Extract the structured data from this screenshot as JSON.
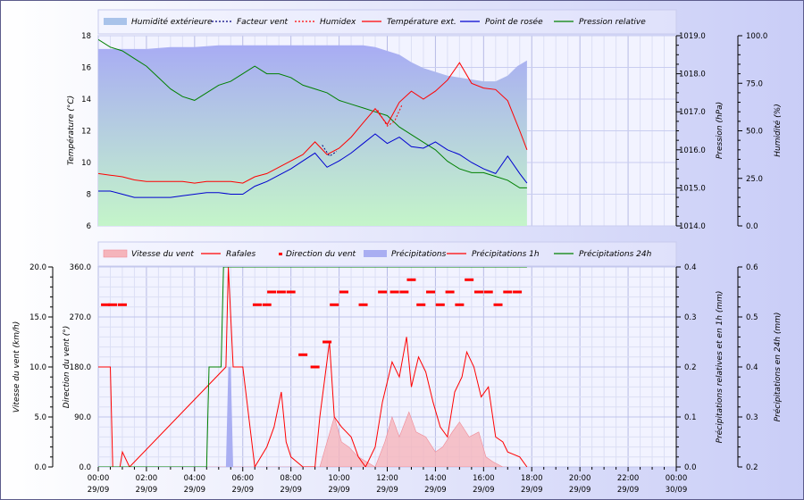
{
  "chart_data": [
    {
      "type": "line",
      "legend": [
        "Humidité extérieure",
        "Facteur vent",
        "Humidex",
        "Température ext.",
        "Point de rosée",
        "Pression relative"
      ],
      "axes": {
        "y_left": {
          "label": "Température (°C)",
          "ticks": [
            "6",
            "8",
            "10",
            "12",
            "14",
            "16",
            "18"
          ],
          "range": [
            6,
            18
          ]
        },
        "y_right1": {
          "label": "Pression (hPa)",
          "ticks": [
            "1014.0",
            "1015.0",
            "1016.0",
            "1017.0",
            "1018.0",
            "1019.0"
          ],
          "range": [
            1014,
            1019
          ]
        },
        "y_right2": {
          "label": "Humidité (%)",
          "ticks": [
            "0.0",
            "25.0",
            "50.0",
            "75.0",
            "100.0"
          ],
          "range": [
            0,
            100
          ]
        }
      },
      "x_range_hours": [
        0,
        24
      ],
      "series": [
        {
          "name": "Humidité extérieure",
          "unit": "%",
          "color": "#a9aef2",
          "x": [
            0,
            0.5,
            1,
            1.5,
            2,
            3,
            4,
            5,
            6,
            7,
            8,
            9,
            10,
            11,
            11.5,
            12,
            12.5,
            13,
            13.5,
            14,
            14.5,
            15,
            15.5,
            16,
            16.5,
            17,
            17.4,
            17.8
          ],
          "y": [
            93,
            93,
            93,
            93,
            93,
            94,
            94,
            95,
            95,
            95,
            95,
            95,
            95,
            95,
            94,
            92,
            90,
            86,
            83,
            81,
            79,
            78,
            77,
            76,
            76,
            79,
            84,
            87
          ]
        },
        {
          "name": "Pression relative",
          "unit": "hPa",
          "color": "#008000",
          "x": [
            0,
            0.5,
            1,
            1.5,
            2,
            2.5,
            3,
            3.5,
            4,
            4.5,
            5,
            5.5,
            6,
            6.5,
            7,
            7.5,
            8,
            8.5,
            9,
            9.5,
            10,
            10.5,
            11,
            11.5,
            12,
            12.5,
            13,
            13.5,
            14,
            14.5,
            15,
            15.5,
            16,
            16.5,
            17,
            17.5,
            17.8
          ],
          "y": [
            1018.9,
            1018.7,
            1018.6,
            1018.4,
            1018.2,
            1017.9,
            1017.6,
            1017.4,
            1017.3,
            1017.5,
            1017.7,
            1017.8,
            1018.0,
            1018.2,
            1018.0,
            1018.0,
            1017.9,
            1017.7,
            1017.6,
            1017.5,
            1017.3,
            1017.2,
            1017.1,
            1017.0,
            1016.9,
            1016.6,
            1016.4,
            1016.2,
            1016.0,
            1015.7,
            1015.5,
            1015.4,
            1015.4,
            1015.3,
            1015.2,
            1015.0,
            1015.0
          ]
        },
        {
          "name": "Température ext.",
          "unit": "°C",
          "color": "#ff0000",
          "x": [
            0,
            0.5,
            1,
            1.5,
            2,
            2.5,
            3,
            3.5,
            4,
            4.5,
            5,
            5.5,
            6,
            6.5,
            7,
            7.5,
            8,
            8.5,
            9,
            9.5,
            10,
            10.5,
            11,
            11.5,
            12,
            12.5,
            13,
            13.5,
            14,
            14.5,
            15,
            15.5,
            16,
            16.5,
            17,
            17.5,
            17.8
          ],
          "y": [
            9.3,
            9.2,
            9.1,
            8.9,
            8.8,
            8.8,
            8.8,
            8.8,
            8.7,
            8.8,
            8.8,
            8.8,
            8.7,
            9.1,
            9.3,
            9.7,
            10.1,
            10.5,
            11.3,
            10.5,
            10.9,
            11.6,
            12.5,
            13.4,
            12.4,
            13.8,
            14.5,
            14.0,
            14.5,
            15.2,
            16.3,
            15.0,
            14.7,
            14.6,
            13.9,
            12.0,
            10.8
          ]
        },
        {
          "name": "Point de rosée",
          "unit": "°C",
          "color": "#0000d0",
          "x": [
            0,
            0.5,
            1,
            1.5,
            2,
            2.5,
            3,
            3.5,
            4,
            4.5,
            5,
            5.5,
            6,
            6.5,
            7,
            7.5,
            8,
            8.5,
            9,
            9.5,
            10,
            10.5,
            11,
            11.5,
            12,
            12.5,
            13,
            13.5,
            14,
            14.5,
            15,
            15.5,
            16,
            16.5,
            17,
            17.5,
            17.8
          ],
          "y": [
            8.2,
            8.2,
            8.0,
            7.8,
            7.8,
            7.8,
            7.8,
            7.9,
            8.0,
            8.1,
            8.1,
            8.0,
            8.0,
            8.5,
            8.8,
            9.2,
            9.6,
            10.1,
            10.6,
            9.7,
            10.1,
            10.6,
            11.2,
            11.8,
            11.2,
            11.6,
            11.0,
            10.9,
            11.3,
            10.8,
            10.5,
            10.0,
            9.6,
            9.3,
            10.4,
            9.3,
            8.7
          ]
        },
        {
          "name": "Humidex",
          "unit": "°C",
          "color": "#ff0000",
          "x": [
            11.6,
            12.0,
            12.3,
            12.6
          ],
          "y": [
            13.3,
            12.3,
            12.6,
            13.6
          ]
        },
        {
          "name": "Facteur vent",
          "unit": "°C",
          "color": "#000080",
          "x": [
            9.3,
            9.6,
            9.9
          ],
          "y": [
            11.1,
            10.4,
            10.7
          ]
        }
      ],
      "x_ticks": [
        {
          "time": "00:00",
          "date": "29/09"
        },
        {
          "time": "02:00",
          "date": "29/09"
        },
        {
          "time": "04:00",
          "date": "29/09"
        },
        {
          "time": "06:00",
          "date": "29/09"
        },
        {
          "time": "08:00",
          "date": "29/09"
        },
        {
          "time": "10:00",
          "date": "29/09"
        },
        {
          "time": "12:00",
          "date": "29/09"
        },
        {
          "time": "14:00",
          "date": "29/09"
        },
        {
          "time": "16:00",
          "date": "29/09"
        },
        {
          "time": "18:00",
          "date": "29/09"
        },
        {
          "time": "20:00",
          "date": "29/09"
        },
        {
          "time": "22:00",
          "date": "29/09"
        },
        {
          "time": "00:00",
          "date": "30/09"
        }
      ]
    },
    {
      "type": "line",
      "legend": [
        "Vitesse du vent",
        "Rafales",
        "Direction du vent",
        "Précipitations",
        "Précipitations 1h",
        "Précipitations 24h"
      ],
      "axes": {
        "y_left": {
          "label": "Vitesse du vent (km/h)",
          "ticks": [
            "0.0",
            "5.0",
            "10.0",
            "15.0",
            "20.0"
          ],
          "range": [
            0,
            20
          ]
        },
        "y_left2": {
          "label": "Direction du vent (°)",
          "ticks": [
            "0.0",
            "90.0",
            "180.0",
            "270.0",
            "360.0"
          ],
          "range": [
            0,
            360
          ]
        },
        "y_right1": {
          "label": "Précipitations relatives et en 1h (mm)",
          "ticks": [
            "0.0",
            "0.1",
            "0.2",
            "0.3",
            "0.4"
          ],
          "range": [
            0,
            0.4
          ]
        },
        "y_right2": {
          "label": "Précipitations en 24h (mm)",
          "ticks": [
            "0.2",
            "0.3",
            "0.4",
            "0.5",
            "0.6"
          ],
          "range": [
            0.2,
            0.6
          ]
        }
      },
      "x_range_hours": [
        0,
        24
      ],
      "series": [
        {
          "name": "Vitesse du vent",
          "unit": "km/h",
          "color": "#f4a9b0",
          "x": [
            0,
            9.2,
            9.5,
            9.8,
            10.1,
            10.4,
            10.8,
            11.5,
            11.9,
            12.2,
            12.5,
            12.9,
            13.2,
            13.6,
            14.0,
            14.3,
            14.7,
            15.0,
            15.4,
            15.8,
            16.1,
            16.4,
            16.8,
            17.0
          ],
          "y": [
            0,
            0,
            2.5,
            5.0,
            2.5,
            2.0,
            1.0,
            0,
            2.5,
            5.0,
            3.0,
            5.5,
            3.5,
            3.0,
            1.5,
            2.0,
            3.5,
            4.5,
            3.0,
            3.5,
            1.0,
            0.5,
            0,
            0
          ]
        },
        {
          "name": "Rafales",
          "unit": "km/h",
          "color": "#ff0000",
          "x": [
            0,
            0.5,
            0.6,
            0.9,
            1.0,
            1.3,
            5.3,
            5.4,
            5.6,
            6.0,
            6.5,
            7.0,
            7.3,
            7.6,
            7.8,
            8.0,
            8.5,
            9.0,
            9.2,
            9.6,
            9.8,
            10.1,
            10.5,
            10.8,
            11.1,
            11.5,
            11.8,
            12.2,
            12.5,
            12.8,
            13.0,
            13.3,
            13.6,
            13.9,
            14.2,
            14.5,
            14.8,
            15.1,
            15.3,
            15.6,
            15.9,
            16.2,
            16.5,
            16.8,
            17.0,
            17.5,
            17.8
          ],
          "y": [
            10.0,
            10.0,
            0,
            0,
            1.5,
            0,
            10.0,
            20.0,
            10.0,
            10.0,
            0,
            2.0,
            4.0,
            7.5,
            2.5,
            1.0,
            0,
            0,
            5.0,
            12.5,
            5.0,
            4.0,
            3.0,
            1.0,
            0,
            2.0,
            6.5,
            10.5,
            9.0,
            13.0,
            8.0,
            11.0,
            9.5,
            6.5,
            4.0,
            3.0,
            7.5,
            9.0,
            11.5,
            10.0,
            7.0,
            8.0,
            3.0,
            2.5,
            1.5,
            1.0,
            0
          ]
        },
        {
          "name": "Direction du vent",
          "unit": "°",
          "color": "#ff0000",
          "x": [
            0.3,
            0.6,
            1.0,
            6.6,
            7.0,
            7.2,
            7.6,
            8.0,
            8.5,
            9.0,
            9.5,
            9.8,
            10.2,
            11.0,
            11.8,
            12.3,
            12.7,
            13.0,
            13.4,
            13.8,
            14.2,
            14.6,
            15.0,
            15.4,
            15.8,
            16.2,
            16.6,
            17.0,
            17.4
          ],
          "y": [
            292,
            292,
            292,
            292,
            292,
            315,
            315,
            315,
            202,
            180,
            225,
            292,
            315,
            292,
            315,
            315,
            315,
            337,
            292,
            315,
            292,
            315,
            292,
            337,
            315,
            315,
            292,
            315,
            315
          ]
        },
        {
          "name": "Précipitations",
          "unit": "mm",
          "color": "#a9aef2",
          "x": [
            5.3,
            5.4,
            5.5,
            5.6
          ],
          "y": [
            0,
            0.2,
            0.2,
            0
          ]
        },
        {
          "name": "Précipitations 1h",
          "unit": "mm",
          "color": "#ff0000",
          "x": [],
          "y": []
        },
        {
          "name": "Précipitations 24h",
          "unit": "mm",
          "color": "#008000",
          "x": [
            0,
            4.5,
            4.6,
            5.1,
            5.2,
            5.6,
            17.8
          ],
          "y": [
            0.2,
            0.2,
            0.4,
            0.4,
            0.6,
            0.6,
            0.6
          ]
        }
      ],
      "x_ticks": [
        {
          "time": "00:00",
          "date": "29/09"
        },
        {
          "time": "02:00",
          "date": "29/09"
        },
        {
          "time": "04:00",
          "date": "29/09"
        },
        {
          "time": "06:00",
          "date": "29/09"
        },
        {
          "time": "08:00",
          "date": "29/09"
        },
        {
          "time": "10:00",
          "date": "29/09"
        },
        {
          "time": "12:00",
          "date": "29/09"
        },
        {
          "time": "14:00",
          "date": "29/09"
        },
        {
          "time": "16:00",
          "date": "29/09"
        },
        {
          "time": "18:00",
          "date": "29/09"
        },
        {
          "time": "20:00",
          "date": "29/09"
        },
        {
          "time": "22:00",
          "date": "29/09"
        },
        {
          "time": "00:00",
          "date": "30/09"
        }
      ]
    }
  ]
}
